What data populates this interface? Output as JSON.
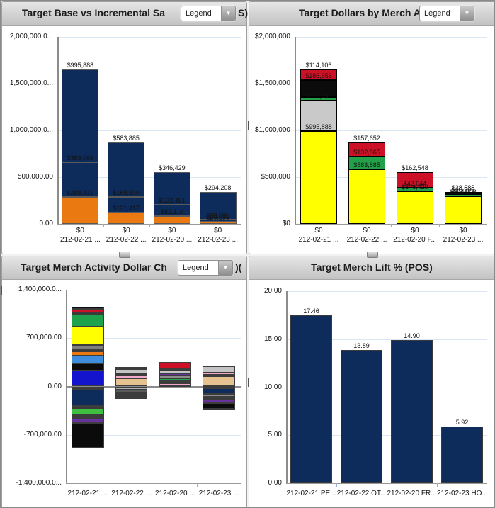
{
  "panels": [
    {
      "title_prefix": "Target Base vs Incremental Sa",
      "title_suffix": "S)",
      "legend_label": "Legend"
    },
    {
      "title_prefix": "Target Dollars by Merch Activ",
      "title_suffix": "",
      "legend_label": "Legend"
    },
    {
      "title_prefix": "Target Merch Activity Dollar Ch",
      "title_suffix": ")(",
      "legend_label": "Legend"
    },
    {
      "title_prefix": "Target Merch Lift % (POS)",
      "title_suffix": "",
      "legend_label": ""
    }
  ],
  "colors": {
    "navy": "#0D2B5B",
    "orange": "#E97910",
    "yellow": "#FFFF00",
    "green": "#22A04A",
    "red": "#CC1126",
    "silver": "#C9C9C9",
    "black": "#0B0B0B",
    "grid": "#D9E6F5"
  },
  "chart_data": [
    {
      "type": "bar",
      "stacked": true,
      "title": "Target Base vs Incremental Sales (POS)",
      "ylim": [
        0,
        2000000
      ],
      "yticks": [
        {
          "v": 0,
          "label": "0.00"
        },
        {
          "v": 500000,
          "label": "500,000.00"
        },
        {
          "v": 1000000,
          "label": "1,000,000.0..."
        },
        {
          "v": 1500000,
          "label": "1,500,000.0..."
        },
        {
          "v": 2000000,
          "label": "2,000,000.0..."
        }
      ],
      "categories": [
        "212-02-21 ...",
        "212-02-22 ...",
        "212-02-20 ...",
        "212-02-23 ..."
      ],
      "category_top_labels": [
        "$0",
        "$0",
        "$0",
        "$0"
      ],
      "bars": [
        {
          "segments": [
            {
              "color": "#E97910",
              "value": 288832,
              "label": "$288,832"
            },
            {
              "color": "#0D2B5B",
              "value": 369066,
              "label": "$369,066"
            },
            {
              "color": "#0D2B5B",
              "value": 995888,
              "label": "$995,888"
            }
          ]
        },
        {
          "segments": [
            {
              "color": "#E97910",
              "value": 121417,
              "label": "$121,417"
            },
            {
              "color": "#0D2B5B",
              "value": 169100,
              "label": "$169,100"
            },
            {
              "color": "#0D2B5B",
              "value": 583885,
              "label": "$583,885"
            }
          ]
        },
        {
          "segments": [
            {
              "color": "#E97910",
              "value": 82110,
              "label": "$82,110"
            },
            {
              "color": "#0D2B5B",
              "value": 122481,
              "label": "$122,481"
            },
            {
              "color": "#0D2B5B",
              "value": 346429,
              "label": "$346,429"
            }
          ]
        },
        {
          "segments": [
            {
              "color": "#E97910",
              "value": 20299,
              "label": "$20,299"
            },
            {
              "color": "#0D2B5B",
              "value": 28585,
              "label": "$28,585"
            },
            {
              "color": "#0D2B5B",
              "value": 294208,
              "label": "$294,208"
            }
          ]
        }
      ]
    },
    {
      "type": "bar",
      "stacked": true,
      "title": "Target Dollars by Merch Activity",
      "ylim": [
        0,
        2000000
      ],
      "yticks": [
        {
          "v": 0,
          "label": "$0"
        },
        {
          "v": 500000,
          "label": "$500,000"
        },
        {
          "v": 1000000,
          "label": "$1,000,000"
        },
        {
          "v": 1500000,
          "label": "$1,500,000"
        },
        {
          "v": 2000000,
          "label": "$2,000,000"
        }
      ],
      "categories": [
        "212-02-21 ...",
        "212-02-22 ...",
        "212-02-20 F...",
        "212-02-23 ..."
      ],
      "category_top_labels": [
        "$0",
        "$0",
        "$0",
        "$0"
      ],
      "bars": [
        {
          "segments": [
            {
              "color": "#FFFF00",
              "value": 995888,
              "label": "$995,888"
            },
            {
              "color": "#C9C9C9",
              "value": 320430,
              "label": "$320,430"
            },
            {
              "color": "#22A04A",
              "value": 36706,
              "label": ""
            },
            {
              "color": "#0B0B0B",
              "value": 186656,
              "label": "$186,656"
            },
            {
              "color": "#CC1126",
              "value": 114106,
              "label": "$114,106"
            }
          ]
        },
        {
          "segments": [
            {
              "color": "#FFFF00",
              "value": 583885,
              "label": "$583,885"
            },
            {
              "color": "#22A04A",
              "value": 132865,
              "label": "$132,865"
            },
            {
              "color": "#CC1126",
              "value": 157652,
              "label": "$157,652"
            }
          ]
        },
        {
          "segments": [
            {
              "color": "#FFFF00",
              "value": 346429,
              "label": "$346,429"
            },
            {
              "color": "#22A04A",
              "value": 42044,
              "label": "$42,044"
            },
            {
              "color": "#CC1126",
              "value": 162548,
              "label": "$162,548"
            }
          ]
        },
        {
          "segments": [
            {
              "color": "#FFFF00",
              "value": 294208,
              "label": "$294,208"
            },
            {
              "color": "#22A04A",
              "value": 20299,
              "label": "$20,299"
            },
            {
              "color": "#CC1126",
              "value": 28585,
              "label": "$28,585"
            }
          ]
        }
      ]
    },
    {
      "type": "bar",
      "stacked": true,
      "title": "Target Merch Activity Dollar Change (POS)",
      "ylim": [
        -1400000,
        1400000
      ],
      "yticks": [
        {
          "v": -1400000,
          "label": "-1,400,000.0..."
        },
        {
          "v": -700000,
          "label": "-700,000.00"
        },
        {
          "v": 0,
          "label": "0.00"
        },
        {
          "v": 700000,
          "label": "700,000.00"
        },
        {
          "v": 1400000,
          "label": "1,400,000.0..."
        }
      ],
      "categories": [
        "212-02-21 ...",
        "212-02-22 ...",
        "212-02-20 ...",
        "212-02-23 ..."
      ],
      "category_top_labels": [
        "",
        "",
        "",
        ""
      ],
      "bars": [
        {
          "segments": [
            {
              "color": "#1414CC",
              "value": 226000
            },
            {
              "color": "#0B0B0B",
              "value": 105000
            },
            {
              "color": "#3E8EDD",
              "value": 115000
            },
            {
              "color": "#E97910",
              "value": 61000
            },
            {
              "color": "#CC1126",
              "value": 24000
            },
            {
              "color": "#7F7F7F",
              "value": 54000
            },
            {
              "color": "#C4C4C4",
              "value": 24000
            },
            {
              "color": "#FFFF00",
              "value": 254000
            },
            {
              "color": "#1FA24C",
              "value": 186000
            },
            {
              "color": "#0B0B0B",
              "value": 27000
            },
            {
              "color": "#CC1126",
              "value": 51000
            },
            {
              "color": "#0B0B0B",
              "value": 24000
            }
          ],
          "neg_segments": [
            {
              "color": "#CC1126",
              "value": 24000
            },
            {
              "color": "#0B0B0B",
              "value": 17000
            },
            {
              "color": "#0D2B5B",
              "value": 230000
            },
            {
              "color": "#CC1126",
              "value": 24000
            },
            {
              "color": "#F2A9CB",
              "value": 20000
            },
            {
              "color": "#3FBF3F",
              "value": 91000
            },
            {
              "color": "#CC1126",
              "value": 20000
            },
            {
              "color": "#7F7F7F",
              "value": 30000
            },
            {
              "color": "#6A329F",
              "value": 68000
            },
            {
              "color": "#0B0B0B",
              "value": 362000
            }
          ]
        },
        {
          "segments": [
            {
              "color": "#E6C291",
              "value": 118000
            },
            {
              "color": "#F2A9CB",
              "value": 51000
            },
            {
              "color": "#FFFFFF",
              "value": 14000
            },
            {
              "color": "#C4C4C4",
              "value": 71000
            },
            {
              "color": "#9A9A9A",
              "value": 24000
            }
          ],
          "neg_segments": [
            {
              "color": "#B0B0B0",
              "value": 50000
            },
            {
              "color": "#5A5A5A",
              "value": 34000
            },
            {
              "color": "#8C8C8C",
              "value": 27000
            },
            {
              "color": "#FFFF00",
              "value": 17000
            },
            {
              "color": "#0B0B0B",
              "value": 14000
            },
            {
              "color": "#3FBF3F",
              "value": 17000
            },
            {
              "color": "#0B0B0B",
              "value": 10000
            }
          ]
        },
        {
          "segments": [
            {
              "color": "#0B0B0B",
              "value": 20000
            },
            {
              "color": "#F2A9CB",
              "value": 24000
            },
            {
              "color": "#CC1126",
              "value": 24000
            },
            {
              "color": "#0B0B0B",
              "value": 20000
            },
            {
              "color": "#1FA24C",
              "value": 34000
            },
            {
              "color": "#8C8C8C",
              "value": 34000
            },
            {
              "color": "#6A329F",
              "value": 34000
            },
            {
              "color": "#C4C4C4",
              "value": 37000
            },
            {
              "color": "#0B0B0B",
              "value": 20000
            },
            {
              "color": "#CC1126",
              "value": 108000
            }
          ],
          "neg_segments": []
        },
        {
          "segments": [
            {
              "color": "#0B0B0B",
              "value": 20000
            },
            {
              "color": "#E6C291",
              "value": 132000
            },
            {
              "color": "#FFFFFF",
              "value": 20000
            },
            {
              "color": "#F2A9CB",
              "value": 24000
            },
            {
              "color": "#C4C4C4",
              "value": 101000
            }
          ],
          "neg_segments": [
            {
              "color": "#CC1126",
              "value": 24000
            },
            {
              "color": "#0D2B5B",
              "value": 78000
            },
            {
              "color": "#CC1126",
              "value": 20000
            },
            {
              "color": "#8C8C8C",
              "value": 27000
            },
            {
              "color": "#CC1126",
              "value": 20000
            },
            {
              "color": "#C4C4C4",
              "value": 24000
            },
            {
              "color": "#6A329F",
              "value": 51000
            },
            {
              "color": "#0B0B0B",
              "value": 78000
            },
            {
              "color": "#CC1126",
              "value": 24000
            }
          ]
        }
      ]
    },
    {
      "type": "bar",
      "stacked": false,
      "title": "Target Merch Lift % (POS)",
      "ylim": [
        0,
        20
      ],
      "yticks": [
        {
          "v": 0,
          "label": "0.00"
        },
        {
          "v": 5,
          "label": "5.00"
        },
        {
          "v": 10,
          "label": "10.00"
        },
        {
          "v": 15,
          "label": "15.00"
        },
        {
          "v": 20,
          "label": "20.00"
        }
      ],
      "categories": [
        "212-02-21 PE...",
        "212-02-22 OT...",
        "212-02-20 FR...",
        "212-02-23 HO..."
      ],
      "category_top_labels": [
        "",
        "",
        "",
        ""
      ],
      "bars": [
        {
          "segments": [
            {
              "color": "#0D2B5B",
              "value": 17.46,
              "label": "17.46"
            }
          ]
        },
        {
          "segments": [
            {
              "color": "#0D2B5B",
              "value": 13.89,
              "label": "13.89"
            }
          ]
        },
        {
          "segments": [
            {
              "color": "#0D2B5B",
              "value": 14.9,
              "label": "14.90"
            }
          ]
        },
        {
          "segments": [
            {
              "color": "#0D2B5B",
              "value": 5.92,
              "label": "5.92"
            }
          ]
        }
      ]
    }
  ]
}
